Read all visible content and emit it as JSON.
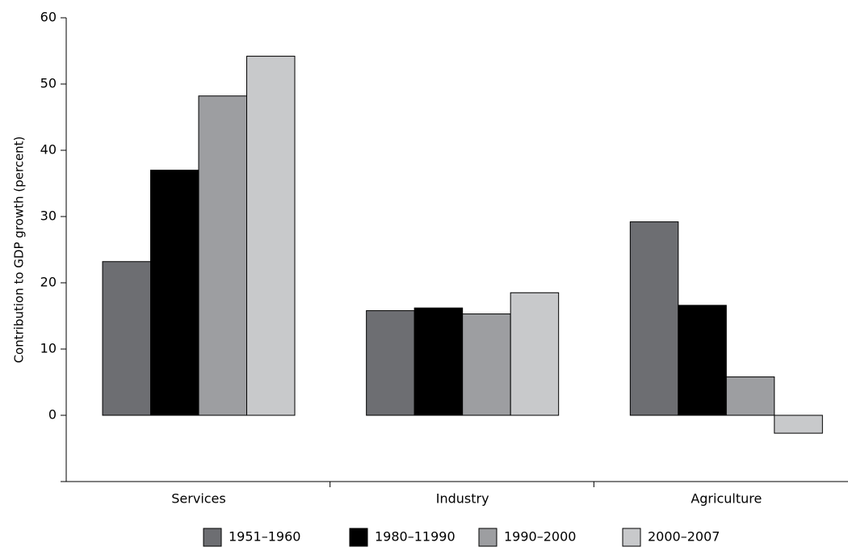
{
  "chart_data": {
    "type": "bar",
    "title": "",
    "xlabel": "",
    "ylabel": "Contribution to GDP growth (percent)",
    "ylim": [
      -10,
      60
    ],
    "yticks": [
      0,
      10,
      20,
      30,
      40,
      50,
      60
    ],
    "grid": false,
    "legend_position": "bottom",
    "categories": [
      "Services",
      "Industry",
      "Agriculture"
    ],
    "series": [
      {
        "name": "1951–1960",
        "color": "#6d6e72",
        "values": [
          23.2,
          15.8,
          29.2
        ]
      },
      {
        "name": "1980–11990",
        "color": "#000000",
        "values": [
          37.0,
          16.2,
          16.6
        ]
      },
      {
        "name": "1990–2000",
        "color": "#9d9ea1",
        "values": [
          48.2,
          15.3,
          5.8
        ]
      },
      {
        "name": "2000–2007",
        "color": "#c8c9cb",
        "values": [
          54.2,
          18.5,
          -2.7
        ]
      }
    ]
  }
}
